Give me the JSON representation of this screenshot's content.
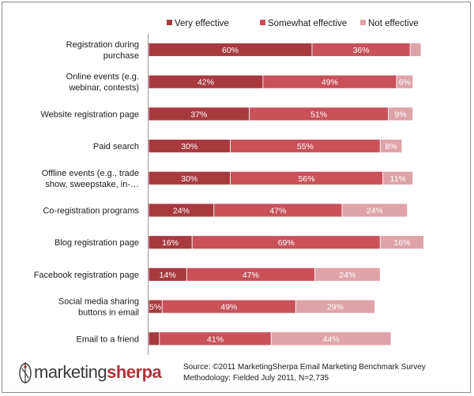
{
  "chart_data": {
    "type": "bar",
    "orientation": "horizontal",
    "stacked": true,
    "unit": "%",
    "xlim": [
      0,
      100
    ],
    "grid": false,
    "legend": "top",
    "categories": [
      "Registration during purchase",
      "Online events (e.g. webinar, contests)",
      "Website registration page",
      "Paid search",
      "Offline events (e.g., trade show, sweepstake, in-…",
      "Co-registration programs",
      "Blog registration page",
      "Facebook registration page",
      "Social media sharing buttons in email",
      "Email to a friend"
    ],
    "category_lines": [
      [
        "Registration during",
        "purchase"
      ],
      [
        "Online events (e.g.",
        "webinar, contests)"
      ],
      [
        "Website registration page"
      ],
      [
        "Paid search"
      ],
      [
        "Offline events (e.g., trade",
        "show, sweepstake, in-…"
      ],
      [
        "Co-registration programs"
      ],
      [
        "Blog registration page"
      ],
      [
        "Facebook registration page"
      ],
      [
        "Social media sharing",
        "buttons in email"
      ],
      [
        "Email to a friend"
      ]
    ],
    "series": [
      {
        "name": "Very effective",
        "color": "#a83a3f",
        "values": [
          60,
          42,
          37,
          30,
          30,
          24,
          16,
          14,
          5,
          4
        ]
      },
      {
        "name": "Somewhat effective",
        "color": "#c8515a",
        "values": [
          36,
          49,
          51,
          55,
          56,
          47,
          69,
          47,
          49,
          41
        ]
      },
      {
        "name": "Not effective",
        "color": "#dea3a8",
        "values": [
          4,
          6,
          9,
          8,
          11,
          24,
          16,
          24,
          29,
          44
        ]
      }
    ],
    "data_labels": [
      [
        "60%",
        "36%",
        ""
      ],
      [
        "42%",
        "49%",
        "6%"
      ],
      [
        "37%",
        "51%",
        "9%"
      ],
      [
        "30%",
        "55%",
        "8%"
      ],
      [
        "30%",
        "56%",
        "11%"
      ],
      [
        "24%",
        "47%",
        "24%"
      ],
      [
        "16%",
        "69%",
        "16%"
      ],
      [
        "14%",
        "47%",
        "24%"
      ],
      [
        "5%",
        "49%",
        "29%"
      ],
      [
        "",
        "41%",
        "44%"
      ]
    ]
  },
  "source": {
    "line1": "Source: ©2011 MarketingSherpa Email Marketing Benchmark Survey",
    "line2": "Methodology: Fielded July 2011, N=2,735"
  },
  "logo": {
    "part1": "marketing",
    "part2": "sherpa"
  }
}
